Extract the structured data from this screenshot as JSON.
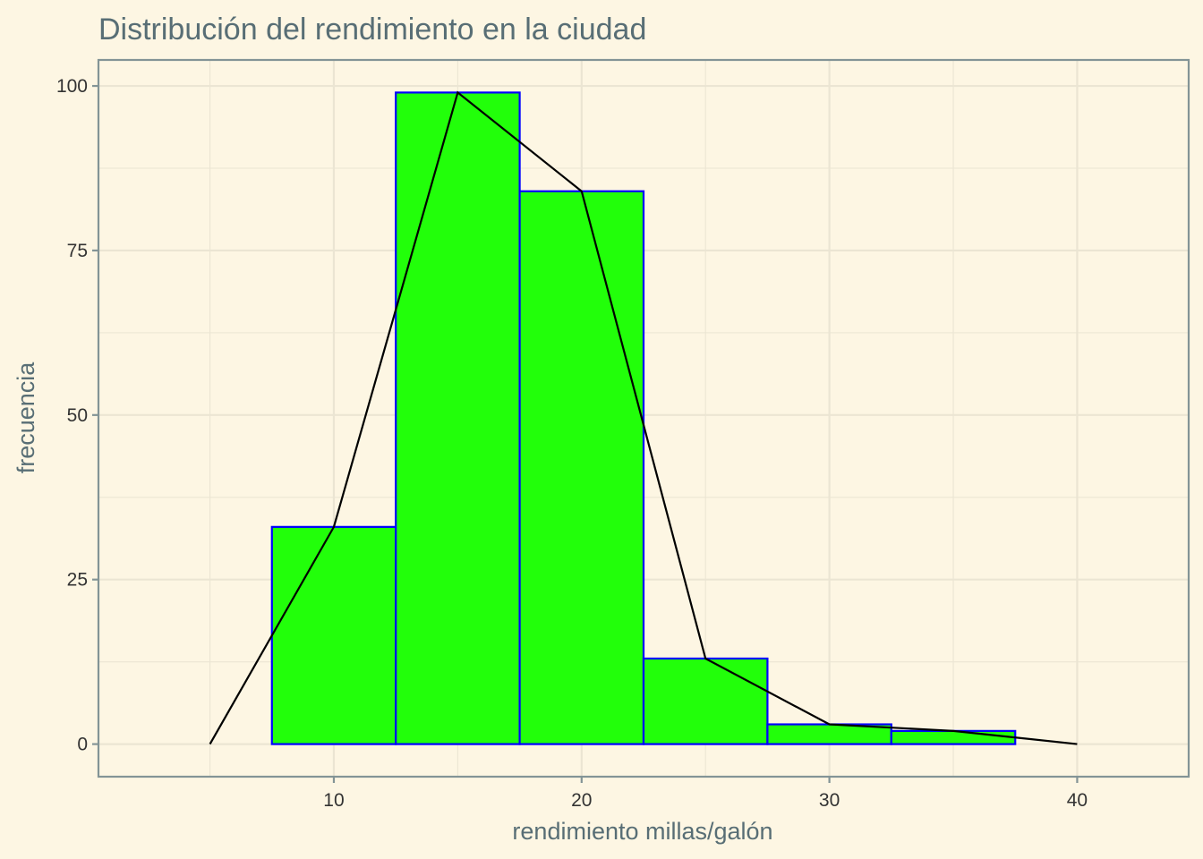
{
  "chart_data": {
    "type": "bar",
    "title": "Distribución del rendimiento en la ciudad",
    "xlabel": "rendimiento millas/galón",
    "ylabel": "frecuencia",
    "bin_width": 5,
    "bins": [
      {
        "center": 10,
        "count": 33
      },
      {
        "center": 15,
        "count": 99
      },
      {
        "center": 20,
        "count": 84
      },
      {
        "center": 25,
        "count": 13
      },
      {
        "center": 30,
        "count": 3
      },
      {
        "center": 35,
        "count": 2
      }
    ],
    "frequency_polygon": {
      "x": [
        5,
        10,
        15,
        20,
        25,
        30,
        35,
        40
      ],
      "y": [
        0,
        33,
        99,
        84,
        13,
        3,
        2,
        0
      ]
    },
    "xlim": [
      0.5,
      44.5
    ],
    "ylim": [
      -4.95,
      103.95
    ],
    "x_ticks": [
      10,
      20,
      30,
      40
    ],
    "x_minor_ticks": [
      5,
      15,
      25,
      35
    ],
    "y_ticks": [
      0,
      25,
      50,
      75,
      100
    ],
    "y_minor_ticks": [
      12.5,
      37.5,
      62.5,
      87.5
    ],
    "grid": true,
    "colors": {
      "background": "#fdf6e3",
      "bar_fill": "#22ff0a",
      "bar_outline": "#0000ff",
      "polygon_line": "#000000",
      "grid": "#ebe5d3",
      "panel_border": "#839496",
      "title_text": "#586e75",
      "tick_text": "#333333"
    }
  }
}
